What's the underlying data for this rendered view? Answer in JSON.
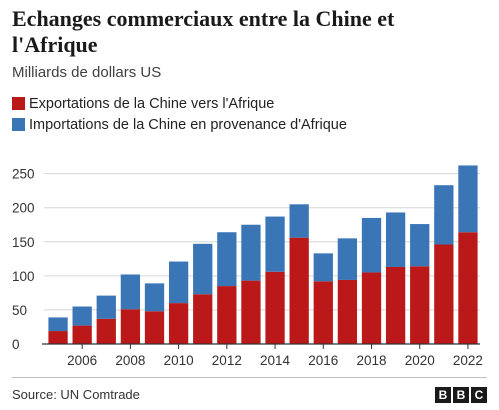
{
  "title": "Echanges commerciaux entre la Chine et l'Afrique",
  "subtitle": "Milliards de dollars US",
  "legend": {
    "exports_label": "Exportations de la Chine vers l'Afrique",
    "imports_label": "Importations de la Chine en provenance d'Afrique"
  },
  "colors": {
    "exports": "#bb1919",
    "imports": "#3a76b6",
    "grid": "#d6d6d6",
    "axis": "#333333"
  },
  "source": "Source: UN Comtrade",
  "logo": [
    "B",
    "B",
    "C"
  ],
  "chart_data": {
    "type": "bar",
    "stacked": true,
    "title": "Echanges commerciaux entre la Chine et l'Afrique",
    "subtitle": "Milliards de dollars US",
    "categories": [
      2005,
      2006,
      2007,
      2008,
      2009,
      2010,
      2011,
      2012,
      2013,
      2014,
      2015,
      2016,
      2017,
      2018,
      2019,
      2020,
      2021,
      2022
    ],
    "series": [
      {
        "name": "Exportations de la Chine vers l'Afrique",
        "values": [
          19,
          27,
          37,
          51,
          48,
          60,
          73,
          85,
          93,
          106,
          156,
          92,
          94,
          105,
          113,
          114,
          146,
          164
        ]
      },
      {
        "name": "Importations de la Chine en provenance d'Afrique",
        "values": [
          20,
          28,
          34,
          51,
          41,
          61,
          74,
          79,
          82,
          81,
          49,
          41,
          61,
          80,
          80,
          62,
          87,
          98
        ]
      }
    ],
    "xtick_labels": [
      "2006",
      "2008",
      "2010",
      "2012",
      "2014",
      "2016",
      "2018",
      "2020",
      "2022"
    ],
    "yticks": [
      0,
      50,
      100,
      150,
      200,
      250
    ],
    "ylim": [
      0,
      270
    ],
    "grid": "horizontal",
    "legend_position": "top-left"
  }
}
